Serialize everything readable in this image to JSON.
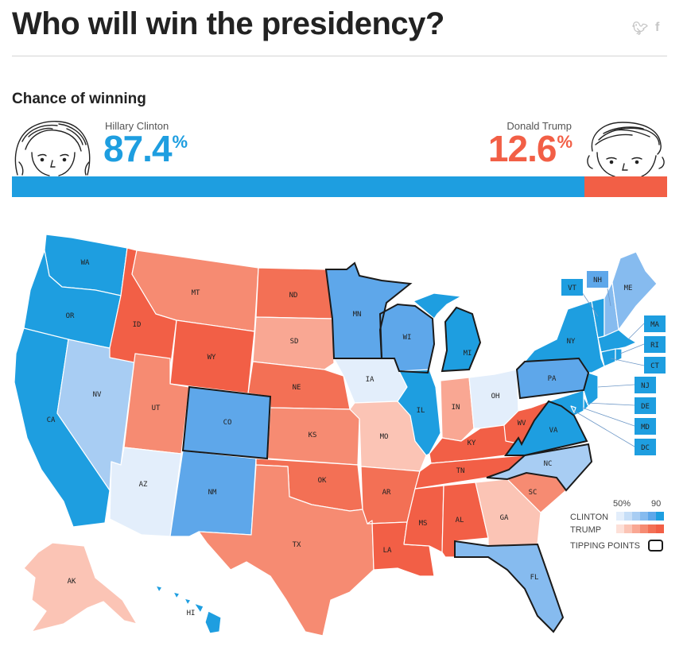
{
  "header": {
    "title": "Who will win the presidency?",
    "share": {
      "twitter_icon": "twitter-icon",
      "facebook_icon": "facebook-icon"
    }
  },
  "forecast": {
    "subtitle": "Chance of winning",
    "clinton": {
      "name": "Hillary Clinton",
      "value": "87.4",
      "unit": "%",
      "fraction": 0.874,
      "color": "#1e9ee0"
    },
    "trump": {
      "name": "Donald Trump",
      "value": "12.6",
      "unit": "%",
      "fraction": 0.126,
      "color": "#f25f46"
    }
  },
  "legend": {
    "scale_low": "50%",
    "scale_high": "90",
    "clinton_label": "CLINTON",
    "trump_label": "TRUMP",
    "tipping_label": "TIPPING POINTS",
    "clinton_ramp": [
      "#e3eefb",
      "#c6def7",
      "#a8cdf3",
      "#86bbef",
      "#5ea7ea",
      "#1e9ee0"
    ],
    "trump_ramp": [
      "#fde0d8",
      "#fbc4b5",
      "#f9a793",
      "#f68b72",
      "#f37055",
      "#f25f46"
    ]
  },
  "states": {
    "WA": "WA",
    "OR": "OR",
    "CA": "CA",
    "NV": "NV",
    "ID": "ID",
    "MT": "MT",
    "WY": "WY",
    "UT": "UT",
    "AZ": "AZ",
    "CO": "CO",
    "NM": "NM",
    "ND": "ND",
    "SD": "SD",
    "NE": "NE",
    "KS": "KS",
    "OK": "OK",
    "TX": "TX",
    "MN": "MN",
    "IA": "IA",
    "MO": "MO",
    "AR": "AR",
    "LA": "LA",
    "WI": "WI",
    "IL": "IL",
    "MS": "MS",
    "MI": "MI",
    "IN": "IN",
    "KY": "KY",
    "TN": "TN",
    "AL": "AL",
    "OH": "OH",
    "WV": "WV",
    "GA": "GA",
    "FL": "FL",
    "SC": "SC",
    "NC": "NC",
    "VA": "VA",
    "PA": "PA",
    "NY": "NY",
    "ME": "ME",
    "AK": "AK",
    "HI": "HI",
    "VT": "VT",
    "NH": "NH",
    "MA": "MA",
    "RI": "RI",
    "CT": "CT",
    "NJ": "NJ",
    "DE": "DE",
    "MD": "MD",
    "DC": "DC"
  },
  "colors": {
    "clinton_strong": "#1e9ee0",
    "clinton_likely": "#5ea7ea",
    "clinton_lean": "#a8cdf3",
    "clinton_tilt": "#e3eefb",
    "trump_strong": "#f25f46",
    "trump_likely": "#f68b72",
    "trump_lean": "#f9a793",
    "trump_tilt": "#fbc4b5"
  }
}
